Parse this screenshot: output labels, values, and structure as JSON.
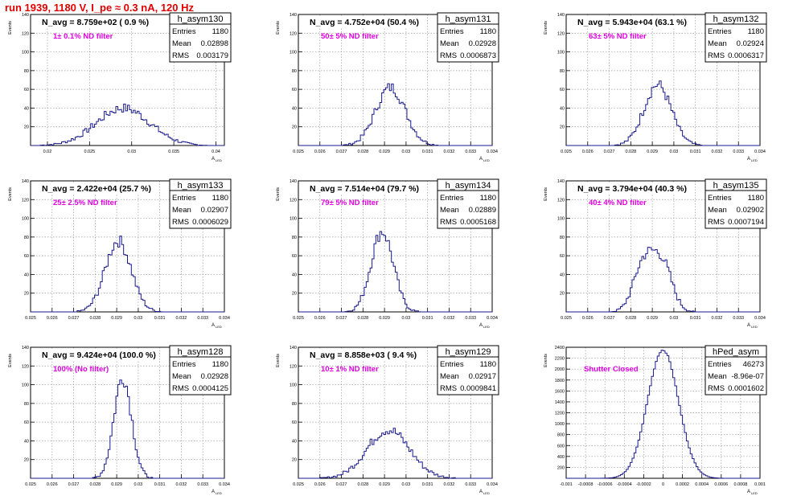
{
  "page_title": "run 1939,  1180 V, I_pe ≈ 0.3 nA, 120 Hz",
  "colors": {
    "hist": "#1a1a8c",
    "text_magenta": "#e000e0",
    "title_red": "#e00000",
    "grid": "#999999"
  },
  "chart_data": [
    {
      "type": "histogram",
      "name": "h_asym130",
      "title": "N_avg = 8.759e+02 ( 0.9 %)",
      "annotation": "1± 0.1% ND filter",
      "stats": {
        "Entries": "1180",
        "Mean": "0.02898",
        "RMS": "0.003179"
      },
      "xlabel": "A",
      "xlabel_sub": "LED",
      "ylabel": "Events",
      "xlim": [
        0.018,
        0.041
      ],
      "ylim": [
        0,
        140
      ],
      "xticks": [
        0.02,
        0.025,
        0.03,
        0.035,
        0.04
      ],
      "xtick_labels": [
        "0.02",
        "0.025",
        "0.03",
        "0.035",
        "0.04"
      ],
      "yticks": [
        0,
        20,
        40,
        60,
        80,
        100,
        120,
        140
      ],
      "ytick_labels": [
        "",
        "20",
        "40",
        "60",
        "80",
        "100",
        "120",
        "140"
      ],
      "mean": 0.02898,
      "rms": 0.003179,
      "peak": 40
    },
    {
      "type": "histogram",
      "name": "h_asym131",
      "title": "N_avg = 4.752e+04 (50.4 %)",
      "annotation": "50± 5% ND filter",
      "stats": {
        "Entries": "1180",
        "Mean": "0.02928",
        "RMS": "0.0006873"
      },
      "xlabel": "A",
      "xlabel_sub": "LED",
      "ylabel": "Events",
      "xlim": [
        0.025,
        0.034
      ],
      "ylim": [
        0,
        140
      ],
      "xticks": [
        0.025,
        0.026,
        0.027,
        0.028,
        0.029,
        0.03,
        0.031,
        0.032,
        0.033,
        0.034
      ],
      "xtick_labels": [
        "0.025",
        "0.026",
        "0.027",
        "0.028",
        "0.029",
        "0.03",
        "0.031",
        "0.032",
        "0.033",
        "0.034"
      ],
      "yticks": [
        0,
        20,
        40,
        60,
        80,
        100,
        120,
        140
      ],
      "ytick_labels": [
        "",
        "20",
        "40",
        "60",
        "80",
        "100",
        "120",
        "140"
      ],
      "mean": 0.02928,
      "rms": 0.0006873,
      "peak": 62
    },
    {
      "type": "histogram",
      "name": "h_asym132",
      "title": "N_avg = 5.943e+04 (63.1 %)",
      "annotation": "63± 5% ND filter",
      "stats": {
        "Entries": "1180",
        "Mean": "0.02924",
        "RMS": "0.0006317"
      },
      "xlabel": "A",
      "xlabel_sub": "LED",
      "ylabel": "Events",
      "xlim": [
        0.025,
        0.034
      ],
      "ylim": [
        0,
        140
      ],
      "xticks": [
        0.025,
        0.026,
        0.027,
        0.028,
        0.029,
        0.03,
        0.031,
        0.032,
        0.033,
        0.034
      ],
      "xtick_labels": [
        "0.025",
        "0.026",
        "0.027",
        "0.028",
        "0.029",
        "0.03",
        "0.031",
        "0.032",
        "0.033",
        "0.034"
      ],
      "yticks": [
        0,
        20,
        40,
        60,
        80,
        100,
        120,
        140
      ],
      "ytick_labels": [
        "",
        "20",
        "40",
        "60",
        "80",
        "100",
        "120",
        "140"
      ],
      "mean": 0.02924,
      "rms": 0.0006317,
      "peak": 65
    },
    {
      "type": "histogram",
      "name": "h_asym133",
      "title": "N_avg = 2.422e+04 (25.7 %)",
      "annotation": "25± 2.5% ND filter",
      "stats": {
        "Entries": "1180",
        "Mean": "0.02907",
        "RMS": "0.0006029"
      },
      "xlabel": "A",
      "xlabel_sub": "LED",
      "ylabel": "Events",
      "xlim": [
        0.025,
        0.034
      ],
      "ylim": [
        0,
        140
      ],
      "xticks": [
        0.025,
        0.026,
        0.027,
        0.028,
        0.029,
        0.03,
        0.031,
        0.032,
        0.033,
        0.034
      ],
      "xtick_labels": [
        "0.025",
        "0.026",
        "0.027",
        "0.028",
        "0.029",
        "0.03",
        "0.031",
        "0.032",
        "0.033",
        "0.034"
      ],
      "yticks": [
        0,
        20,
        40,
        60,
        80,
        100,
        120,
        140
      ],
      "ytick_labels": [
        "",
        "20",
        "40",
        "60",
        "80",
        "100",
        "120",
        "140"
      ],
      "mean": 0.02907,
      "rms": 0.0006029,
      "peak": 76
    },
    {
      "type": "histogram",
      "name": "h_asym134",
      "title": "N_avg = 7.514e+04 (79.7 %)",
      "annotation": "79± 5% ND filter",
      "stats": {
        "Entries": "1180",
        "Mean": "0.02889",
        "RMS": "0.0005168"
      },
      "xlabel": "A",
      "xlabel_sub": "LED",
      "ylabel": "Events",
      "xlim": [
        0.025,
        0.034
      ],
      "ylim": [
        0,
        140
      ],
      "xticks": [
        0.025,
        0.026,
        0.027,
        0.028,
        0.029,
        0.03,
        0.031,
        0.032,
        0.033,
        0.034
      ],
      "xtick_labels": [
        "0.025",
        "0.026",
        "0.027",
        "0.028",
        "0.029",
        "0.03",
        "0.031",
        "0.032",
        "0.033",
        "0.034"
      ],
      "yticks": [
        0,
        20,
        40,
        60,
        80,
        100,
        120,
        140
      ],
      "ytick_labels": [
        "",
        "20",
        "40",
        "60",
        "80",
        "100",
        "120",
        "140"
      ],
      "mean": 0.02889,
      "rms": 0.0005168,
      "peak": 86
    },
    {
      "type": "histogram",
      "name": "h_asym135",
      "title": "N_avg = 3.794e+04 (40.3 %)",
      "annotation": "40± 4% ND filter",
      "stats": {
        "Entries": "1180",
        "Mean": "0.02902",
        "RMS": "0.0007194"
      },
      "xlabel": "A",
      "xlabel_sub": "LED",
      "ylabel": "Events",
      "xlim": [
        0.025,
        0.034
      ],
      "ylim": [
        0,
        140
      ],
      "xticks": [
        0.025,
        0.026,
        0.027,
        0.028,
        0.029,
        0.03,
        0.031,
        0.032,
        0.033,
        0.034
      ],
      "xtick_labels": [
        "0.025",
        "0.026",
        "0.027",
        "0.028",
        "0.029",
        "0.03",
        "0.031",
        "0.032",
        "0.033",
        "0.034"
      ],
      "yticks": [
        0,
        20,
        40,
        60,
        80,
        100,
        120,
        140
      ],
      "ytick_labels": [
        "",
        "20",
        "40",
        "60",
        "80",
        "100",
        "120",
        "140"
      ],
      "mean": 0.02902,
      "rms": 0.0007194,
      "peak": 56,
      "bimodal": true
    },
    {
      "type": "histogram",
      "name": "h_asym128",
      "title": "N_avg = 9.424e+04 (100.0 %)",
      "annotation": "100% (No filter)",
      "stats": {
        "Entries": "1180",
        "Mean": "0.02928",
        "RMS": "0.0004125"
      },
      "xlabel": "A",
      "xlabel_sub": "LED",
      "ylabel": "Events",
      "xlim": [
        0.025,
        0.034
      ],
      "ylim": [
        0,
        140
      ],
      "xticks": [
        0.025,
        0.026,
        0.027,
        0.028,
        0.029,
        0.03,
        0.031,
        0.032,
        0.033,
        0.034
      ],
      "xtick_labels": [
        "0.025",
        "0.026",
        "0.027",
        "0.028",
        "0.029",
        "0.03",
        "0.031",
        "0.032",
        "0.033",
        "0.034"
      ],
      "yticks": [
        0,
        20,
        40,
        60,
        80,
        100,
        120,
        140
      ],
      "ytick_labels": [
        "",
        "20",
        "40",
        "60",
        "80",
        "100",
        "120",
        "140"
      ],
      "mean": 0.02928,
      "rms": 0.0004125,
      "peak": 108
    },
    {
      "type": "histogram",
      "name": "h_asym129",
      "title": "N_avg = 8.858e+03 ( 9.4 %)",
      "annotation": "10± 1% ND filter",
      "stats": {
        "Entries": "1180",
        "Mean": "0.02917",
        "RMS": "0.0009841"
      },
      "xlabel": "A",
      "xlabel_sub": "LED",
      "ylabel": "Events",
      "xlim": [
        0.025,
        0.034
      ],
      "ylim": [
        0,
        140
      ],
      "xticks": [
        0.025,
        0.026,
        0.027,
        0.028,
        0.029,
        0.03,
        0.031,
        0.032,
        0.033,
        0.034
      ],
      "xtick_labels": [
        "0.025",
        "0.026",
        "0.027",
        "0.028",
        "0.029",
        "0.03",
        "0.031",
        "0.032",
        "0.033",
        "0.034"
      ],
      "yticks": [
        0,
        20,
        40,
        60,
        80,
        100,
        120,
        140
      ],
      "ytick_labels": [
        "",
        "20",
        "40",
        "60",
        "80",
        "100",
        "120",
        "140"
      ],
      "mean": 0.02917,
      "rms": 0.0009841,
      "peak": 52
    },
    {
      "type": "histogram",
      "name": "hPed_asym",
      "title": "",
      "annotation": "Shutter Closed",
      "stats": {
        "Entries": "46273",
        "Mean": "-8.96e-07",
        "RMS": "0.0001602"
      },
      "xlabel": "A",
      "xlabel_sub": "LED",
      "ylabel": "Events",
      "xlim": [
        -0.001,
        0.001
      ],
      "ylim": [
        0,
        2400
      ],
      "xticks": [
        -0.001,
        -0.0008,
        -0.0006,
        -0.0004,
        -0.0002,
        0,
        0.0002,
        0.0004,
        0.0006,
        0.0008,
        0.001
      ],
      "xtick_labels": [
        "-0.001",
        "-0.0008",
        "-0.0006",
        "-0.0004",
        "-0.0002",
        "0",
        "0.0002",
        "0.0004",
        "0.0006",
        "0.0008",
        "0.001"
      ],
      "yticks": [
        0,
        200,
        400,
        600,
        800,
        1000,
        1200,
        1400,
        1600,
        1800,
        2000,
        2200,
        2400
      ],
      "ytick_labels": [
        "",
        "200",
        "400",
        "600",
        "800",
        "1000",
        "1200",
        "1400",
        "1600",
        "1800",
        "2000",
        "2200",
        "2400"
      ],
      "mean": -9e-07,
      "rms": 0.0001602,
      "peak": 2350
    }
  ]
}
